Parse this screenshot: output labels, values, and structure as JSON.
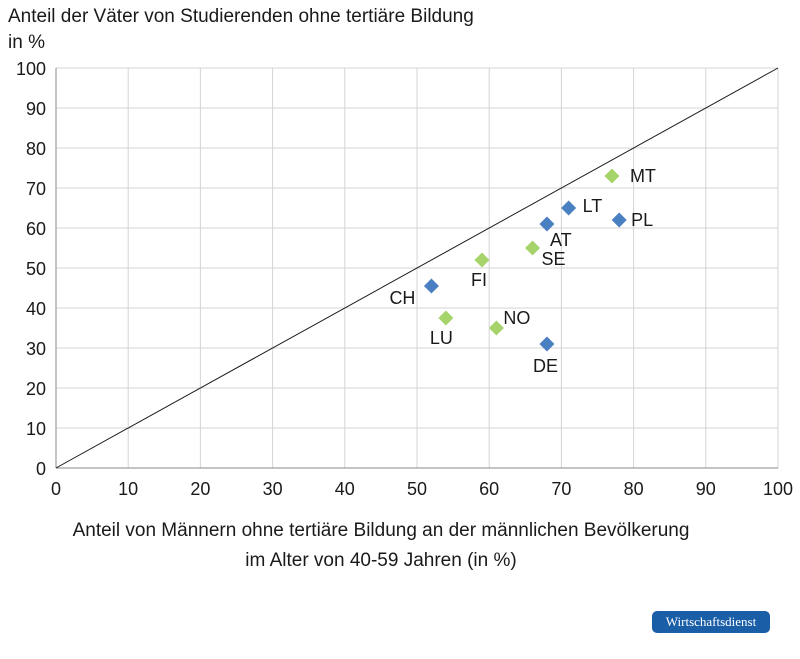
{
  "chart_data": {
    "type": "scatter",
    "ylabel_line1": "Anteil der Väter von Studierenden ohne tertiäre Bildung",
    "ylabel_line2": "in %",
    "xlabel_line1": "Anteil von Männern ohne tertiäre Bildung an der männlichen Bevölkerung",
    "xlabel_line2": "im Alter von 40-59 Jahren (in %)",
    "xlim": [
      0,
      100
    ],
    "ylim": [
      0,
      100
    ],
    "xticks": [
      "0",
      "10",
      "20",
      "30",
      "40",
      "50",
      "60",
      "70",
      "80",
      "90",
      "100"
    ],
    "yticks": [
      "0",
      "10",
      "20",
      "30",
      "40",
      "50",
      "60",
      "70",
      "80",
      "90",
      "100"
    ],
    "grid": true,
    "reference_line": {
      "from": [
        0,
        0
      ],
      "to": [
        100,
        100
      ]
    },
    "colors": {
      "blue": "#4a7fc1",
      "green": "#a6d36a"
    },
    "points": [
      {
        "label": "MT",
        "x": 77,
        "y": 73,
        "color": "green"
      },
      {
        "label": "LT",
        "x": 71,
        "y": 65,
        "color": "blue"
      },
      {
        "label": "PL",
        "x": 78,
        "y": 62,
        "color": "blue"
      },
      {
        "label": "AT",
        "x": 68,
        "y": 61,
        "color": "blue"
      },
      {
        "label": "SE",
        "x": 66,
        "y": 55,
        "color": "green"
      },
      {
        "label": "FI",
        "x": 59,
        "y": 52,
        "color": "green"
      },
      {
        "label": "CH",
        "x": 52,
        "y": 45.5,
        "color": "blue"
      },
      {
        "label": "LU",
        "x": 54,
        "y": 37.5,
        "color": "green"
      },
      {
        "label": "NO",
        "x": 61,
        "y": 35,
        "color": "green"
      },
      {
        "label": "DE",
        "x": 68,
        "y": 31,
        "color": "blue"
      }
    ]
  },
  "badge": "Wirtschaftsdienst"
}
